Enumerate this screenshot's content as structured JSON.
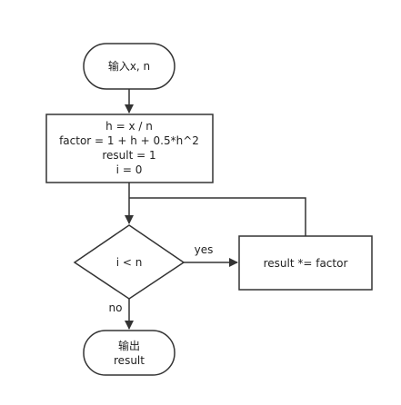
{
  "diagram": {
    "type": "flowchart",
    "colors": {
      "stroke": "#333333",
      "fill": "#ffffff",
      "text": "#222222"
    },
    "nodes": {
      "start": {
        "shape": "terminator",
        "label": "输入x, n"
      },
      "init": {
        "shape": "process",
        "lines": [
          "h = x / n",
          "factor = 1 + h + 0.5*h^2",
          "result = 1",
          "i = 0"
        ]
      },
      "condition": {
        "shape": "decision",
        "label": "i < n"
      },
      "update": {
        "shape": "process",
        "label": "result *= factor"
      },
      "end": {
        "shape": "terminator",
        "lines": [
          "输出",
          "result"
        ]
      }
    },
    "edges": {
      "yes_label": "yes",
      "no_label": "no"
    }
  }
}
